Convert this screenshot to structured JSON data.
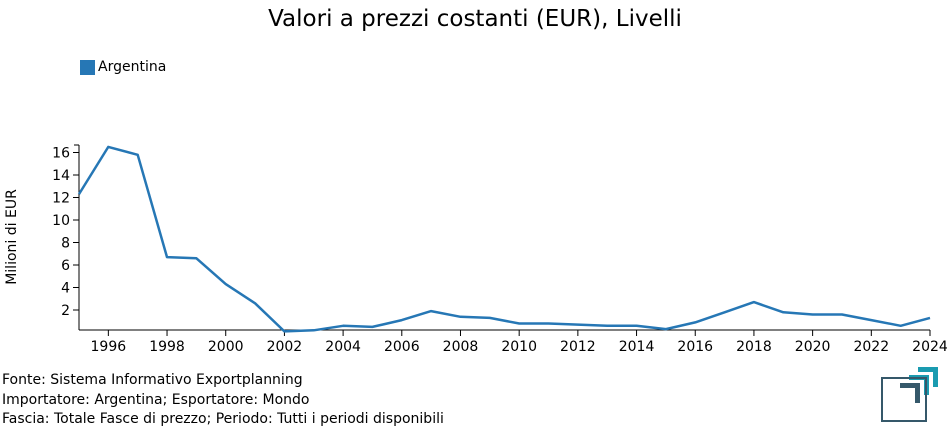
{
  "chart_data": {
    "type": "line",
    "title": "Valori a prezzi costanti (EUR), Livelli",
    "xlabel": "",
    "ylabel": "Milioni di EUR",
    "xlim": [
      1995,
      2024
    ],
    "ylim": [
      0,
      16.7
    ],
    "x_ticks": [
      "1996",
      "1998",
      "2000",
      "2002",
      "2004",
      "2006",
      "2008",
      "2010",
      "2012",
      "2014",
      "2016",
      "2018",
      "2020",
      "2022",
      "2024"
    ],
    "y_ticks": [
      "2",
      "4",
      "6",
      "8",
      "10",
      "12",
      "14",
      "16"
    ],
    "legend_position": "top-left",
    "grid": false,
    "series": [
      {
        "name": "Argentina",
        "color": "#2677b5",
        "x": [
          1995,
          1996,
          1997,
          1998,
          1999,
          2000,
          2001,
          2002,
          2003,
          2004,
          2005,
          2006,
          2007,
          2008,
          2009,
          2010,
          2011,
          2012,
          2013,
          2014,
          2015,
          2016,
          2017,
          2018,
          2019,
          2020,
          2021,
          2022,
          2023,
          2024
        ],
        "values": [
          12.3,
          16.5,
          15.8,
          6.7,
          6.6,
          4.3,
          2.6,
          0.1,
          0.2,
          0.6,
          0.5,
          1.1,
          1.9,
          1.4,
          1.3,
          0.8,
          0.8,
          0.7,
          0.6,
          0.6,
          0.3,
          0.9,
          1.8,
          2.7,
          1.8,
          1.6,
          1.6,
          1.1,
          0.6,
          1.3
        ]
      }
    ]
  },
  "footer": {
    "line1": "Fonte: Sistema Informativo Exportplanning",
    "line2": "Importatore: Argentina; Esportatore: Mondo",
    "line3": "Fascia: Totale Fasce di prezzo; Periodo: Tutti i periodi disponibili"
  },
  "colors": {
    "logo_teal": "#1a9bb0",
    "logo_dark": "#35586a"
  },
  "logo_icon": "exportplanning-logo-icon"
}
